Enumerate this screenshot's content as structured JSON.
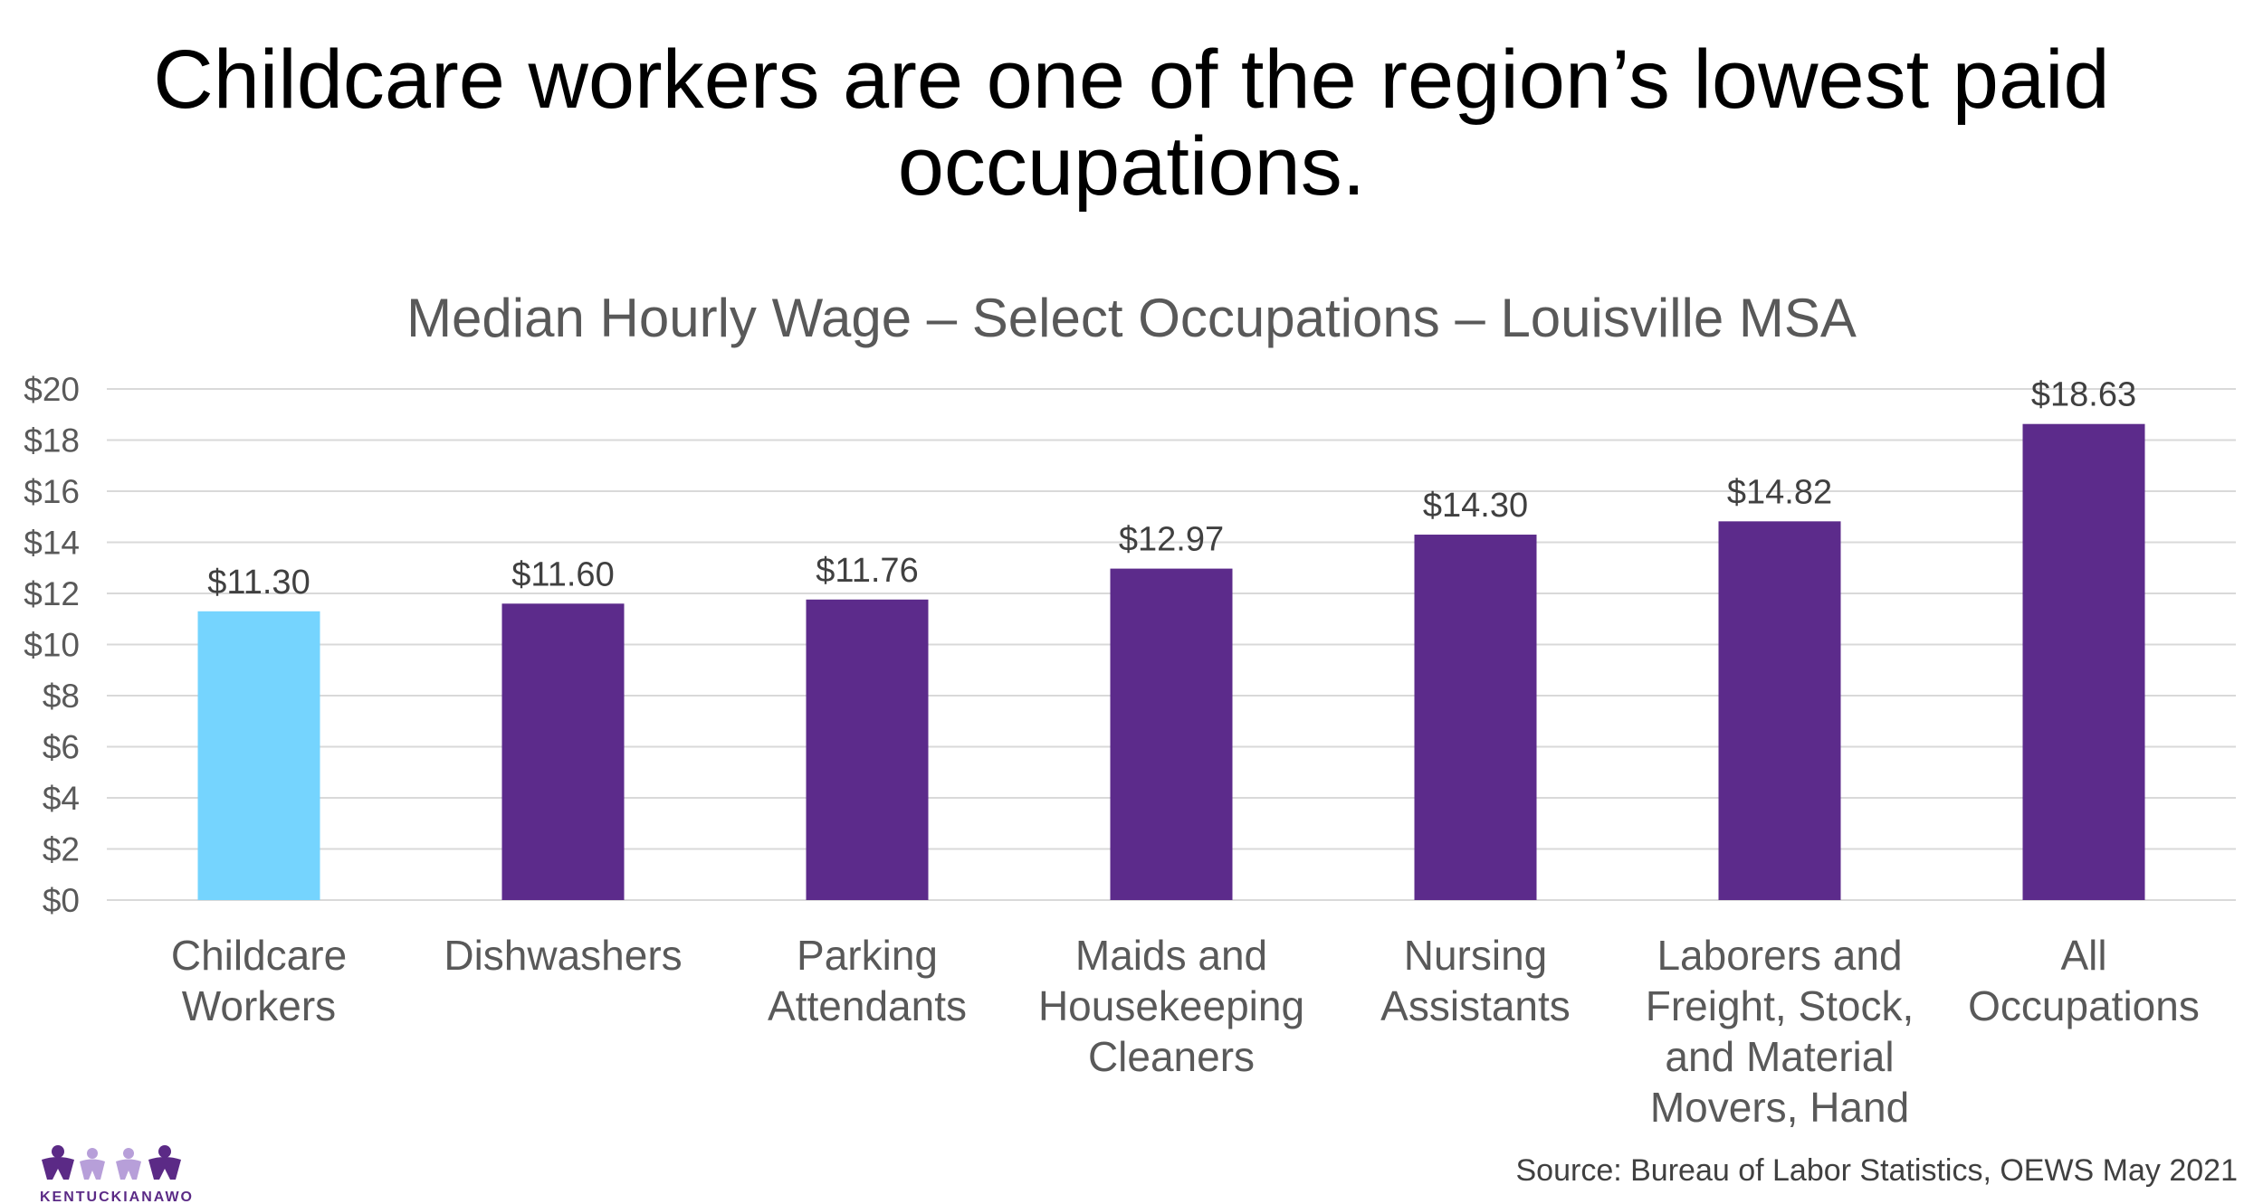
{
  "slide": {
    "title_line1": "Childcare workers are one of the region’s lowest paid",
    "title_line2": "occupations.",
    "source": "Source: Bureau of Labor Statistics, OEWS May 2021",
    "logo_text": "KENTUCKIANAWORKS"
  },
  "chart_data": {
    "type": "bar",
    "title": "Median Hourly Wage – Select Occupations – Louisville MSA",
    "categories": [
      [
        "Childcare",
        "Workers"
      ],
      [
        "Dishwashers"
      ],
      [
        "Parking",
        "Attendants"
      ],
      [
        "Maids and",
        "Housekeeping",
        "Cleaners"
      ],
      [
        "Nursing",
        "Assistants"
      ],
      [
        "Laborers and",
        "Freight, Stock,",
        "and Material",
        "Movers, Hand"
      ],
      [
        "All",
        "Occupations"
      ]
    ],
    "values": [
      11.3,
      11.6,
      11.76,
      12.97,
      14.3,
      14.82,
      18.63
    ],
    "data_labels": [
      "$11.30",
      "$11.60",
      "$11.76",
      "$12.97",
      "$14.30",
      "$14.82",
      "$18.63"
    ],
    "ylim": [
      0,
      20
    ],
    "yticks": [
      0,
      2,
      4,
      6,
      8,
      10,
      12,
      14,
      16,
      18,
      20
    ],
    "ytick_labels": [
      "$0",
      "$2",
      "$4",
      "$6",
      "$8",
      "$10",
      "$12",
      "$14",
      "$16",
      "$18",
      "$20"
    ],
    "grid": true,
    "legend": "none",
    "colors": [
      "#75d4fe",
      "#5c2b8b",
      "#5c2b8b",
      "#5c2b8b",
      "#5c2b8b",
      "#5c2b8b",
      "#5c2b8b"
    ],
    "gridline_color": "#d9d9d9"
  }
}
